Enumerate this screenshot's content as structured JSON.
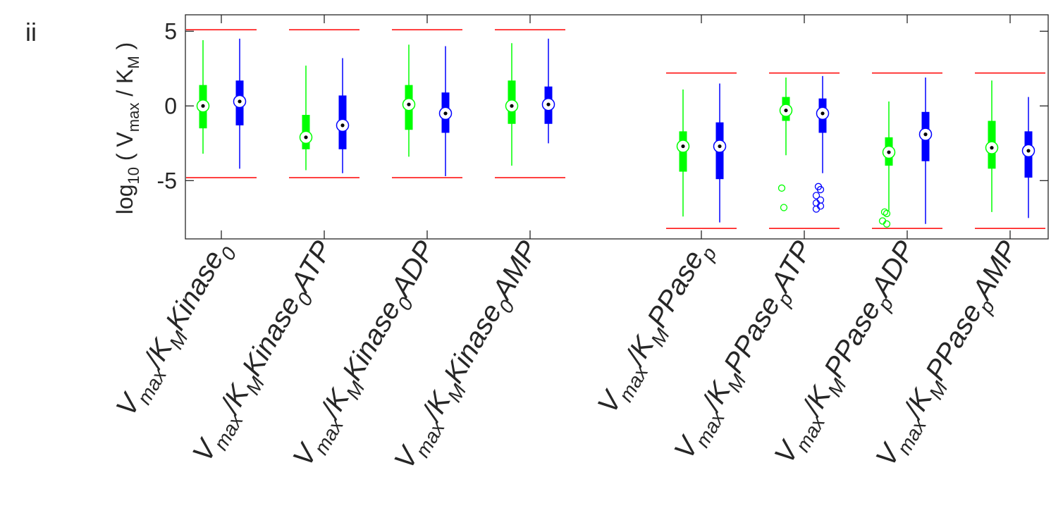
{
  "panel_label": "ii",
  "colors": {
    "group_a": "#00ff00",
    "group_b": "#0000ff",
    "bounds": "#ff0000",
    "axis": "#262626",
    "median_dot": "#000000"
  },
  "chart_data": {
    "type": "box",
    "ylabel": {
      "prefix": "log",
      "sub": "10",
      "open": " ( V",
      "sub2": "max",
      "mid": " / K",
      "sub3": "M",
      "close": " )"
    },
    "ylim": [
      -8.9,
      6.1
    ],
    "yticks": [
      "5",
      "0",
      "-5"
    ],
    "ytick_values": [
      5,
      0,
      -5
    ],
    "grid": false,
    "legend": "none",
    "categories": [
      {
        "v": "V",
        "max": "max",
        "slash": "/K",
        "m": "M",
        "name": "Kinase",
        "sub": "0",
        "suffix": ""
      },
      {
        "v": "V",
        "max": "max",
        "slash": "/K",
        "m": "M",
        "name": "Kinase",
        "sub": "0",
        "suffix": "ATP"
      },
      {
        "v": "V",
        "max": "max",
        "slash": "/K",
        "m": "M",
        "name": "Kinase",
        "sub": "0",
        "suffix": "ADP"
      },
      {
        "v": "V",
        "max": "max",
        "slash": "/K",
        "m": "M",
        "name": "Kinase",
        "sub": "0",
        "suffix": "AMP"
      },
      {
        "v": "V",
        "max": "max",
        "slash": "/K",
        "m": "M",
        "name": "PPase",
        "sub": "p",
        "suffix": ""
      },
      {
        "v": "V",
        "max": "max",
        "slash": "/K",
        "m": "M",
        "name": "PPase",
        "sub": "p",
        "suffix": "ATP"
      },
      {
        "v": "V",
        "max": "max",
        "slash": "/K",
        "m": "M",
        "name": "PPase",
        "sub": "p",
        "suffix": "ADP"
      },
      {
        "v": "V",
        "max": "max",
        "slash": "/K",
        "m": "M",
        "name": "PPase",
        "sub": "p",
        "suffix": "AMP"
      }
    ],
    "bounds": [
      {
        "upper": 5.1,
        "lower": -4.8
      },
      {
        "upper": 5.1,
        "lower": -4.8
      },
      {
        "upper": 5.1,
        "lower": -4.8
      },
      {
        "upper": 5.1,
        "lower": -4.8
      },
      {
        "upper": 2.2,
        "lower": -8.2
      },
      {
        "upper": 2.2,
        "lower": -8.2
      },
      {
        "upper": 2.2,
        "lower": -8.2
      },
      {
        "upper": 2.2,
        "lower": -8.2
      }
    ],
    "series": [
      {
        "color": "#00ff00",
        "boxes": [
          {
            "whisker_low": -3.2,
            "q1": -1.5,
            "median": 0.0,
            "q3": 1.4,
            "whisker_high": 4.4,
            "outliers": []
          },
          {
            "whisker_low": -4.3,
            "q1": -2.9,
            "median": -2.1,
            "q3": -0.6,
            "whisker_high": 2.7,
            "outliers": []
          },
          {
            "whisker_low": -3.4,
            "q1": -1.6,
            "median": 0.1,
            "q3": 1.4,
            "whisker_high": 4.1,
            "outliers": []
          },
          {
            "whisker_low": -4.0,
            "q1": -1.2,
            "median": 0.0,
            "q3": 1.7,
            "whisker_high": 4.2,
            "outliers": []
          },
          {
            "whisker_low": -7.4,
            "q1": -4.4,
            "median": -2.7,
            "q3": -1.7,
            "whisker_high": 1.1,
            "outliers": []
          },
          {
            "whisker_low": -3.3,
            "q1": -1.0,
            "median": -0.3,
            "q3": 0.6,
            "whisker_high": 1.9,
            "outliers": [
              -5.5,
              -6.8
            ]
          },
          {
            "whisker_low": -7.0,
            "q1": -4.0,
            "median": -3.1,
            "q3": -2.1,
            "whisker_high": 0.3,
            "outliers": [
              -7.1,
              -7.2,
              -7.7,
              -7.9
            ]
          },
          {
            "whisker_low": -7.1,
            "q1": -4.2,
            "median": -2.8,
            "q3": -1.0,
            "whisker_high": 1.7,
            "outliers": []
          }
        ]
      },
      {
        "color": "#0000ff",
        "boxes": [
          {
            "whisker_low": -4.2,
            "q1": -1.3,
            "median": 0.3,
            "q3": 1.7,
            "whisker_high": 4.5,
            "outliers": []
          },
          {
            "whisker_low": -4.5,
            "q1": -2.9,
            "median": -1.3,
            "q3": 0.7,
            "whisker_high": 3.2,
            "outliers": []
          },
          {
            "whisker_low": -4.7,
            "q1": -1.8,
            "median": -0.5,
            "q3": 0.9,
            "whisker_high": 4.0,
            "outliers": []
          },
          {
            "whisker_low": -2.5,
            "q1": -1.2,
            "median": 0.1,
            "q3": 1.3,
            "whisker_high": 4.5,
            "outliers": []
          },
          {
            "whisker_low": -7.8,
            "q1": -4.9,
            "median": -2.7,
            "q3": -1.1,
            "whisker_high": 1.5,
            "outliers": []
          },
          {
            "whisker_low": -4.5,
            "q1": -1.8,
            "median": -0.5,
            "q3": 0.5,
            "whisker_high": 2.0,
            "outliers": [
              -5.4,
              -5.6,
              -6.0,
              -6.3,
              -6.5,
              -6.7,
              -6.9
            ]
          },
          {
            "whisker_low": -7.9,
            "q1": -3.7,
            "median": -1.9,
            "q3": -0.4,
            "whisker_high": 1.9,
            "outliers": []
          },
          {
            "whisker_low": -7.5,
            "q1": -4.8,
            "median": -3.0,
            "q3": -1.7,
            "whisker_high": 0.6,
            "outliers": []
          }
        ]
      }
    ]
  }
}
